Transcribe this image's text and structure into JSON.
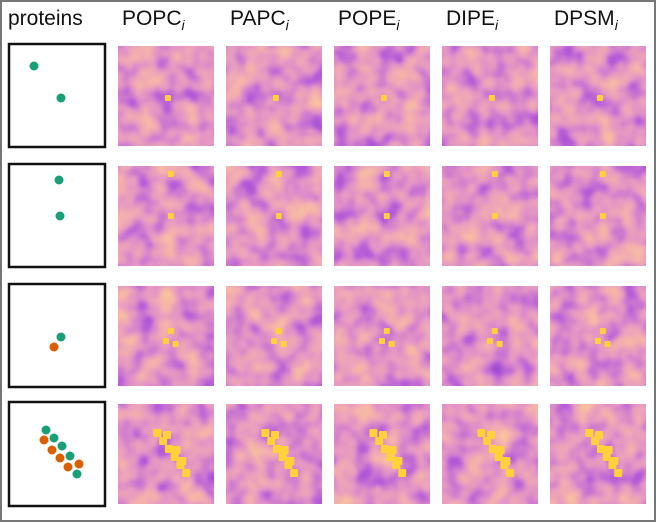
{
  "header": {
    "proteins": "proteins",
    "columns": [
      {
        "name": "POPC",
        "subscript": "i"
      },
      {
        "name": "PAPC",
        "subscript": "i"
      },
      {
        "name": "POPE",
        "subscript": "i"
      },
      {
        "name": "DIPE",
        "subscript": "i"
      },
      {
        "name": "DPSM",
        "subscript": "i"
      }
    ]
  }
}
